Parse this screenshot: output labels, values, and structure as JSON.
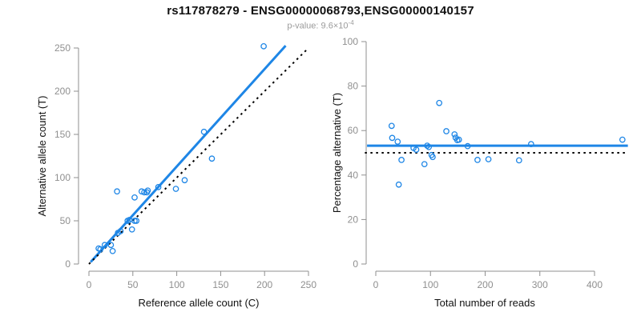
{
  "header": {
    "title": "rs117878279 - ENSG00000068793,ENSG00000140157",
    "subtitle": {
      "prefix": "p-value: ",
      "mantissa": "9.6",
      "times": "×",
      "base": "10",
      "exponent": "-4"
    }
  },
  "colors": {
    "accent_blue": "#1e86e6",
    "identity_black": "#000000",
    "axis_gray": "#8f8f8f",
    "title_black": "#111111",
    "subtitle_gray": "#9b9b9b"
  },
  "chart_data": [
    {
      "type": "scatter",
      "panel": "left",
      "xlabel": "Reference allele count (C)",
      "ylabel": "Alternative allele count (T)",
      "xlim": [
        0,
        250
      ],
      "ylim": [
        0,
        250
      ],
      "xticks": [
        0,
        50,
        100,
        150,
        200,
        250
      ],
      "yticks": [
        0,
        50,
        100,
        150,
        200,
        250
      ],
      "grid": false,
      "marker": "open-circle",
      "points": [
        [
          11,
          18
        ],
        [
          13,
          17
        ],
        [
          18,
          22
        ],
        [
          27,
          15
        ],
        [
          25,
          22
        ],
        [
          33,
          36
        ],
        [
          36,
          38
        ],
        [
          32,
          84
        ],
        [
          44,
          50
        ],
        [
          46,
          51
        ],
        [
          52,
          50
        ],
        [
          54,
          50
        ],
        [
          49,
          40
        ],
        [
          52,
          77
        ],
        [
          60,
          84
        ],
        [
          63,
          83
        ],
        [
          66,
          83
        ],
        [
          67,
          85
        ],
        [
          79,
          89
        ],
        [
          99,
          87
        ],
        [
          109,
          97
        ],
        [
          131,
          153
        ],
        [
          140,
          122
        ],
        [
          199,
          252
        ]
      ],
      "lines": [
        {
          "name": "regression-line",
          "style": "solid",
          "color": "#1e86e6",
          "width": 3,
          "x1": 2,
          "y1": 2.3,
          "x2": 224,
          "y2": 252.7
        },
        {
          "name": "identity-line",
          "style": "dotted",
          "color": "#000000",
          "width": 2,
          "x1": 0,
          "y1": 0,
          "x2": 250,
          "y2": 250
        }
      ]
    },
    {
      "type": "scatter",
      "panel": "right",
      "xlabel": "Total number of reads",
      "ylabel": "Percentage alternative (T)",
      "xlim": [
        0,
        400
      ],
      "ylim": [
        0,
        100
      ],
      "xticks": [
        0,
        100,
        200,
        300,
        400
      ],
      "yticks": [
        0,
        20,
        40,
        60,
        80,
        100
      ],
      "grid": false,
      "marker": "open-circle",
      "points": [
        [
          29,
          62.1
        ],
        [
          30,
          56.7
        ],
        [
          40,
          55.0
        ],
        [
          42,
          35.7
        ],
        [
          47,
          46.8
        ],
        [
          69,
          52.2
        ],
        [
          74,
          51.4
        ],
        [
          116,
          72.4
        ],
        [
          94,
          53.2
        ],
        [
          97,
          52.6
        ],
        [
          102,
          49.0
        ],
        [
          104,
          48.1
        ],
        [
          89,
          44.9
        ],
        [
          129,
          59.7
        ],
        [
          144,
          58.3
        ],
        [
          146,
          56.8
        ],
        [
          149,
          55.7
        ],
        [
          152,
          55.9
        ],
        [
          168,
          53.0
        ],
        [
          186,
          46.8
        ],
        [
          206,
          47.1
        ],
        [
          284,
          53.9
        ],
        [
          262,
          46.6
        ],
        [
          451,
          55.9
        ]
      ],
      "lines": [
        {
          "name": "mean-percentage-line",
          "style": "solid",
          "color": "#1e86e6",
          "width": 3,
          "x1": -16,
          "y1": 53.2,
          "x2": 461,
          "y2": 53.2
        },
        {
          "name": "expected-percentage-line",
          "style": "dotted",
          "color": "#000000",
          "width": 2,
          "x1": -20,
          "y1": 50,
          "x2": 461,
          "y2": 50
        }
      ]
    }
  ]
}
